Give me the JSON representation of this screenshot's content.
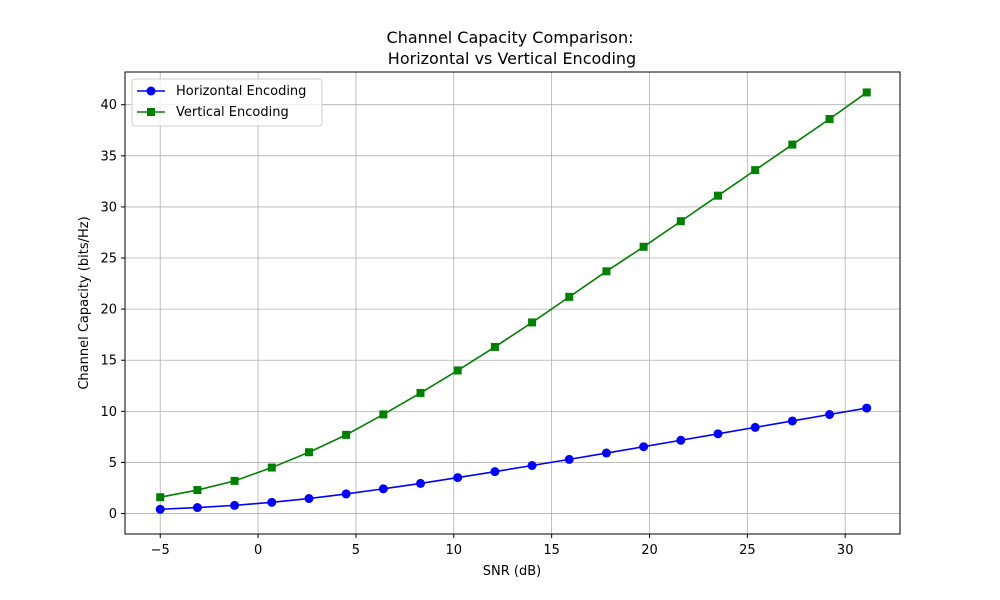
{
  "chart_data": {
    "type": "line",
    "title_line1": "Channel Capacity Comparison:",
    "title_line2": "Horizontal vs Vertical Encoding",
    "xlabel": "SNR (dB)",
    "ylabel": "Channel Capacity (bits/Hz)",
    "xlim": [
      -6.8,
      32.8
    ],
    "ylim": [
      -2.0,
      43.2
    ],
    "xticks": [
      -5,
      0,
      5,
      10,
      15,
      20,
      25,
      30
    ],
    "yticks": [
      0,
      5,
      10,
      15,
      20,
      25,
      30,
      35,
      40
    ],
    "grid": true,
    "legend_position": "upper-left",
    "x": [
      -5.0,
      -3.1,
      -1.2,
      0.7,
      2.6,
      4.5,
      6.4,
      8.3,
      10.2,
      12.1,
      14.0,
      15.9,
      17.8,
      19.7,
      21.6,
      23.5,
      25.4,
      27.3,
      29.2,
      31.1
    ],
    "series": [
      {
        "name": "Horizontal Encoding",
        "color": "#0000ff",
        "marker": "circle",
        "values": [
          0.42,
          0.59,
          0.8,
          1.1,
          1.47,
          1.92,
          2.42,
          2.95,
          3.52,
          4.1,
          4.7,
          5.3,
          5.92,
          6.54,
          7.17,
          7.8,
          8.43,
          9.06,
          9.69,
          10.32
        ]
      },
      {
        "name": "Vertical Encoding",
        "color": "#008000",
        "marker": "square",
        "values": [
          1.6,
          2.3,
          3.2,
          4.5,
          6.0,
          7.7,
          9.7,
          11.8,
          14.0,
          16.3,
          18.7,
          21.2,
          23.7,
          26.1,
          28.6,
          31.1,
          33.6,
          36.1,
          38.6,
          41.2
        ]
      }
    ]
  }
}
